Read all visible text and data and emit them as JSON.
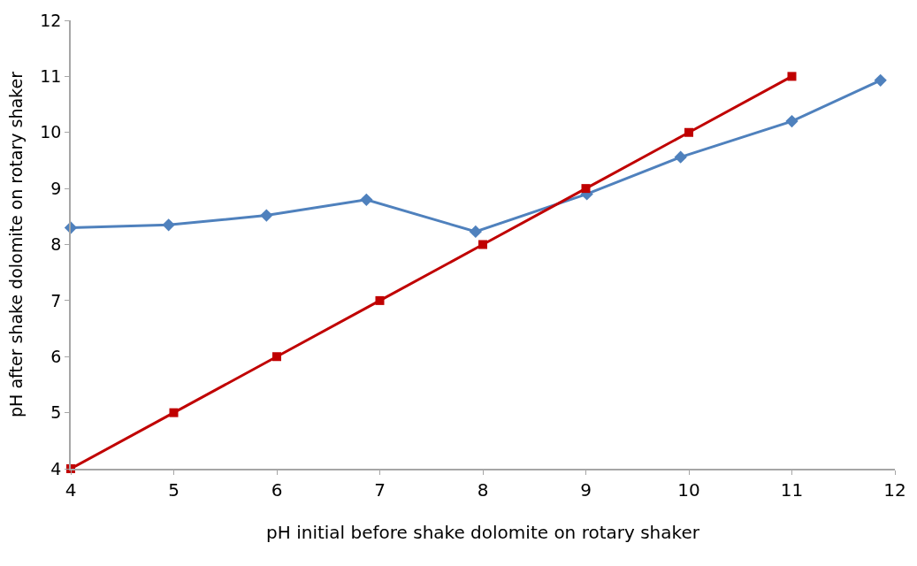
{
  "chart_data": {
    "type": "line",
    "xlabel": "pH initial before shake dolomite on rotary shaker",
    "ylabel": "pH after shake dolomite on rotary shaker",
    "xlim": [
      4,
      12
    ],
    "xticks": [
      4,
      5,
      6,
      7,
      8,
      9,
      10,
      11,
      12
    ],
    "ylim": [
      4,
      12
    ],
    "yticks": [
      4,
      5,
      6,
      7,
      8,
      9,
      10,
      11,
      12
    ],
    "line_style": "solid",
    "series": [
      {
        "color": "#4f81bd",
        "marker": "diamond",
        "x": [
          4,
          4.95,
          5.9,
          6.87,
          7.93,
          9.01,
          9.92,
          11.0,
          11.86
        ],
        "values": [
          8.3,
          8.35,
          8.52,
          8.8,
          8.23,
          8.9,
          9.56,
          10.2,
          10.93
        ]
      },
      {
        "color": "#c00000",
        "marker": "square",
        "x": [
          4,
          5,
          6,
          7,
          8,
          9,
          10,
          11
        ],
        "values": [
          4,
          5,
          6,
          7,
          8,
          9,
          10,
          11
        ]
      }
    ]
  }
}
